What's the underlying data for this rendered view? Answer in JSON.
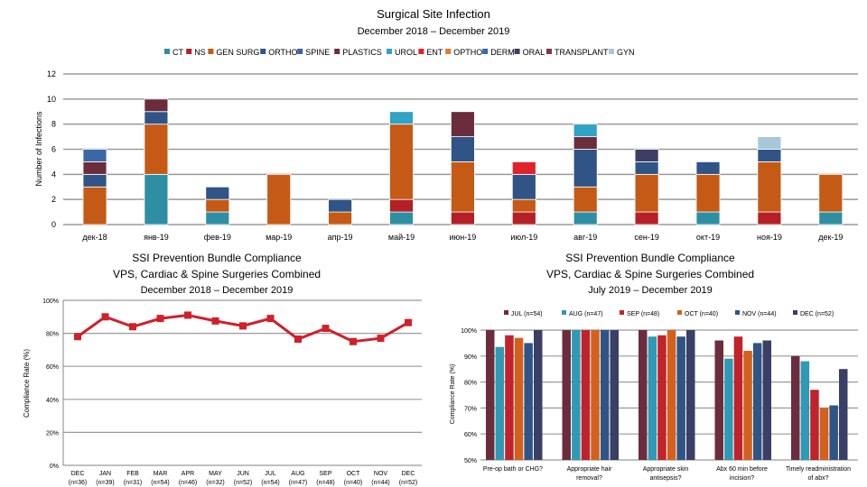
{
  "chart_data": [
    {
      "type": "bar",
      "stacked": true,
      "title": "Surgical Site Infection",
      "subtitle": "December 2018 – December 2019",
      "ylabel": "Number of Infections",
      "ylim": [
        0,
        12
      ],
      "yticks": [
        0,
        2,
        4,
        6,
        8,
        10,
        12
      ],
      "grid": true,
      "legend": "top",
      "categories": [
        "дек-18",
        "янв-19",
        "фев-19",
        "мар-19",
        "апр-19",
        "май-19",
        "июн-19",
        "июл-19",
        "авг-19",
        "сен-19",
        "окт-19",
        "ноя-19",
        "дек-19"
      ],
      "series": [
        {
          "name": "CT",
          "color": "#2e8fa3",
          "values": [
            0,
            4,
            1,
            0,
            0,
            1,
            0,
            0,
            1,
            0,
            1,
            0,
            1
          ]
        },
        {
          "name": "NS",
          "color": "#b51f26",
          "values": [
            0,
            0,
            0,
            0,
            0,
            1,
            1,
            1,
            0,
            1,
            0,
            1,
            0
          ]
        },
        {
          "name": "GEN SURG",
          "color": "#c55a16",
          "values": [
            3,
            4,
            1,
            4,
            1,
            6,
            4,
            1,
            2,
            3,
            3,
            4,
            3
          ]
        },
        {
          "name": "ORTHO",
          "color": "#2f5485",
          "values": [
            1,
            1,
            1,
            0,
            1,
            0,
            2,
            2,
            3,
            1,
            1,
            1,
            0
          ]
        },
        {
          "name": "SPINE",
          "color": "#3a68a5",
          "values": [
            0,
            0,
            0,
            0,
            0,
            0,
            0,
            0,
            0,
            0,
            0,
            0,
            0
          ]
        },
        {
          "name": "PLASTICS",
          "color": "#6b2d3c",
          "values": [
            1,
            1,
            0,
            0,
            0,
            0,
            2,
            0,
            1,
            0,
            0,
            0,
            0
          ]
        },
        {
          "name": "UROL",
          "color": "#31a3c4",
          "values": [
            0,
            0,
            0,
            0,
            0,
            1,
            0,
            0,
            1,
            0,
            0,
            0,
            0
          ]
        },
        {
          "name": "ENT",
          "color": "#e0232b",
          "values": [
            0,
            0,
            0,
            0,
            0,
            0,
            0,
            1,
            0,
            0,
            0,
            0,
            0
          ]
        },
        {
          "name": "OPTHO",
          "color": "#e07b2a",
          "values": [
            0,
            0,
            0,
            0,
            0,
            0,
            0,
            0,
            0,
            0,
            0,
            0,
            0
          ]
        },
        {
          "name": "DERM",
          "color": "#3a68a5",
          "values": [
            1,
            0,
            0,
            0,
            0,
            0,
            0,
            0,
            0,
            0,
            0,
            0,
            0
          ]
        },
        {
          "name": "ORAL",
          "color": "#3c3f63",
          "values": [
            0,
            0,
            0,
            0,
            0,
            0,
            0,
            0,
            0,
            1,
            0,
            0,
            0
          ]
        },
        {
          "name": "TRANSPLANT",
          "color": "#7a3a50",
          "values": [
            0,
            0,
            0,
            0,
            0,
            0,
            0,
            0,
            0,
            0,
            0,
            0,
            0
          ]
        },
        {
          "name": "GYN",
          "color": "#a8c8d8",
          "values": [
            0,
            0,
            0,
            0,
            0,
            0,
            0,
            0,
            0,
            0,
            0,
            1,
            0
          ]
        }
      ]
    },
    {
      "type": "line",
      "title": "SSI Prevention Bundle Compliance",
      "subtitle": "VPS, Cardiac & Spine Surgeries Combined",
      "period": "December 2018 – December 2019",
      "ylabel": "Compliance Rate (%)",
      "ylim": [
        0,
        100
      ],
      "yticks": [
        "0%",
        "20%",
        "40%",
        "60%",
        "80%",
        "100%"
      ],
      "grid": true,
      "categories": [
        [
          "DEC",
          "(n=36)"
        ],
        [
          "JAN",
          "(n=39)"
        ],
        [
          "FEB",
          "(n=31)"
        ],
        [
          "MAR",
          "(n=54)"
        ],
        [
          "APR",
          "(n=46)"
        ],
        [
          "MAY",
          "(n=32)"
        ],
        [
          "JUN",
          "(n=52)"
        ],
        [
          "JUL",
          "(n=54)"
        ],
        [
          "AUG",
          "(n=47)"
        ],
        [
          "SEP",
          "(n=48)"
        ],
        [
          "OCT",
          "(n=40)"
        ],
        [
          "NOV",
          "(n=44)"
        ],
        [
          "DEC",
          "(n=52)"
        ]
      ],
      "series": [
        {
          "color": "#d0202a",
          "values": [
            78,
            90,
            84,
            89,
            91,
            87.5,
            84.5,
            89,
            76.5,
            83,
            75,
            77,
            86.5
          ]
        }
      ]
    },
    {
      "type": "bar",
      "title": "SSI Prevention Bundle Compliance",
      "subtitle": "VPS, Cardiac & Spine Surgeries Combined",
      "period": "July 2019 – December 2019",
      "ylabel": "Compliance Rate (%)",
      "ylim": [
        50,
        100
      ],
      "yticks": [
        "50%",
        "60%",
        "70%",
        "80%",
        "90%",
        "100%"
      ],
      "grid": true,
      "legend": "top",
      "categories": [
        [
          "Pre-op bath or CHG?"
        ],
        [
          "Appropriate hair",
          "removal?"
        ],
        [
          "Appropriate skin",
          "antisepsis?"
        ],
        [
          "Abx 60 min before",
          "incision?"
        ],
        [
          "Timely readministration",
          "of abx?"
        ]
      ],
      "series": [
        {
          "name": "JUL (n=54)",
          "color": "#6b2d3c",
          "values": [
            100,
            100,
            100,
            96,
            90
          ]
        },
        {
          "name": "AUG (n=47)",
          "color": "#2e9ab5",
          "values": [
            93.5,
            100,
            97.5,
            89,
            88
          ]
        },
        {
          "name": "SEP (n=48)",
          "color": "#c0232b",
          "values": [
            98,
            100,
            98,
            97.5,
            77
          ]
        },
        {
          "name": "OCT (n=40)",
          "color": "#d4601e",
          "values": [
            97,
            100,
            100,
            92,
            70
          ]
        },
        {
          "name": "NOV (n=44)",
          "color": "#2f5485",
          "values": [
            95,
            100,
            97.5,
            95,
            71
          ]
        },
        {
          "name": "DEC (n=52)",
          "color": "#3a3f66",
          "values": [
            100,
            100,
            100,
            96,
            85
          ]
        }
      ]
    }
  ]
}
